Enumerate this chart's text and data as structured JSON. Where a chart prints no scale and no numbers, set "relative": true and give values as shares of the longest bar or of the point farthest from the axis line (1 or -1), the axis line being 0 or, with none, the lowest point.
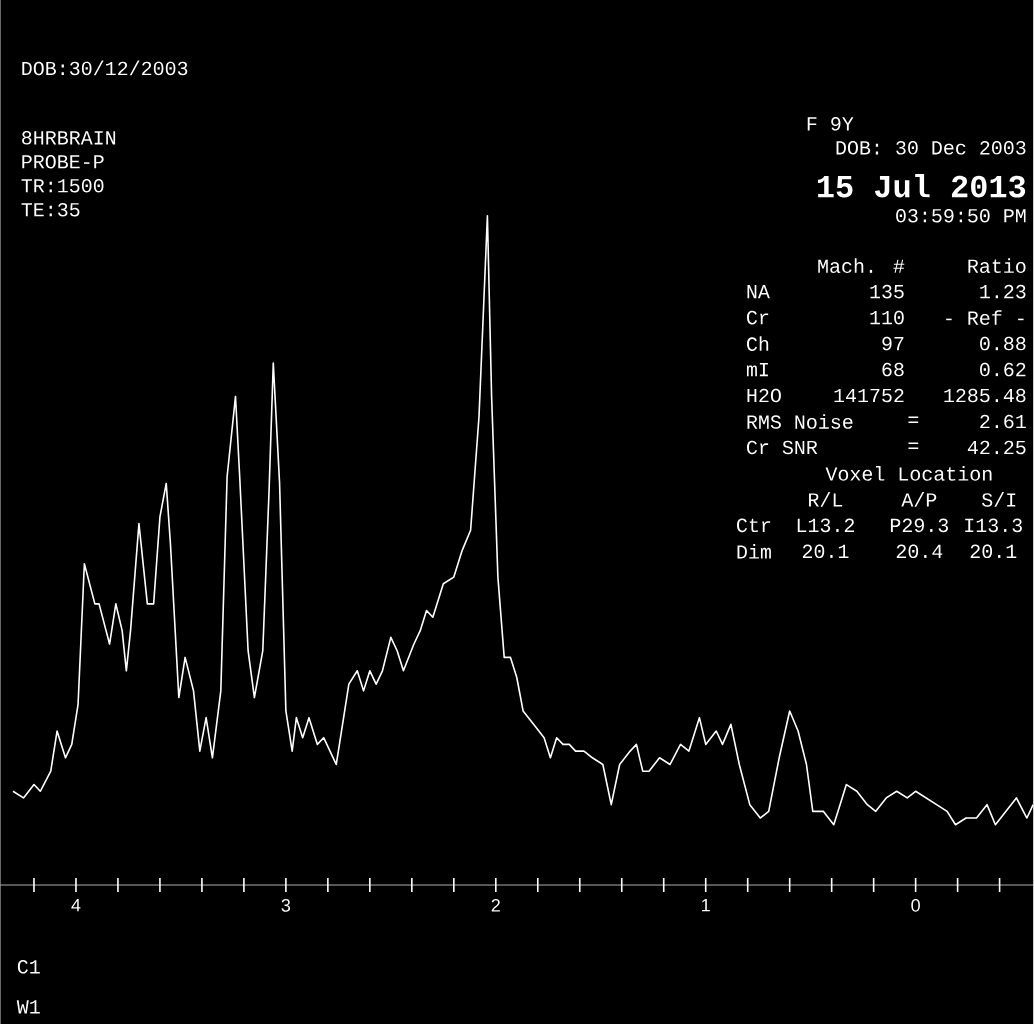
{
  "chart_data": {
    "type": "line",
    "relative": true,
    "tick_labels": "x",
    "xlim": [
      4.36,
      -0.56
    ],
    "xticks": [
      {
        "value": 4.2,
        "label": null
      },
      4,
      {
        "value": 3.8,
        "label": null
      },
      {
        "value": 3.6,
        "label": null
      },
      {
        "value": 3.4,
        "label": null
      },
      {
        "value": 3.2,
        "label": null
      },
      3,
      {
        "value": 2.8,
        "label": null
      },
      {
        "value": 2.6,
        "label": null
      },
      {
        "value": 2.4,
        "label": null
      },
      {
        "value": 2.2,
        "label": null
      },
      2,
      {
        "value": 1.8,
        "label": null
      },
      {
        "value": 1.6,
        "label": null
      },
      {
        "value": 1.4,
        "label": null
      },
      {
        "value": 1.2,
        "label": null
      },
      1,
      {
        "value": 0.8,
        "label": null
      },
      {
        "value": 0.6,
        "label": null
      },
      {
        "value": 0.4,
        "label": null
      },
      {
        "value": 0.2,
        "label": null
      },
      0,
      {
        "value": -0.2,
        "label": null
      },
      {
        "value": -0.4,
        "label": null
      }
    ],
    "series": [
      {
        "color": "#ffffff",
        "x": [
          4.3,
          4.25,
          4.2,
          4.17,
          4.12,
          4.09,
          4.05,
          4.02,
          3.99,
          3.96,
          3.91,
          3.89,
          3.84,
          3.81,
          3.78,
          3.76,
          3.74,
          3.7,
          3.69,
          3.66,
          3.63,
          3.6,
          3.57,
          3.55,
          3.51,
          3.48,
          3.44,
          3.41,
          3.38,
          3.35,
          3.31,
          3.28,
          3.24,
          3.22,
          3.18,
          3.15,
          3.11,
          3.08,
          3.06,
          3.03,
          3.0,
          2.97,
          2.95,
          2.92,
          2.89,
          2.85,
          2.82,
          2.79,
          2.76,
          2.73,
          2.7,
          2.66,
          2.63,
          2.6,
          2.57,
          2.54,
          2.5,
          2.47,
          2.44,
          2.39,
          2.36,
          2.33,
          2.3,
          2.25,
          2.2,
          2.16,
          2.12,
          2.08,
          2.04,
          2.02,
          1.99,
          1.96,
          1.93,
          1.9,
          1.87,
          1.82,
          1.77,
          1.74,
          1.71,
          1.68,
          1.65,
          1.62,
          1.58,
          1.54,
          1.49,
          1.45,
          1.41,
          1.36,
          1.33,
          1.3,
          1.27,
          1.22,
          1.17,
          1.12,
          1.08,
          1.03,
          1.0,
          0.95,
          0.92,
          0.88,
          0.84,
          0.79,
          0.74,
          0.7,
          0.65,
          0.6,
          0.56,
          0.52,
          0.49,
          0.44,
          0.39,
          0.36,
          0.33,
          0.28,
          0.23,
          0.19,
          0.14,
          0.09,
          0.04,
          0.0,
          -0.05,
          -0.1,
          -0.15,
          -0.19,
          -0.24,
          -0.29,
          -0.34,
          -0.38,
          -0.43,
          -0.48,
          -0.53,
          -0.56
        ],
        "values": [
          0.14,
          0.13,
          0.15,
          0.14,
          0.17,
          0.23,
          0.19,
          0.21,
          0.27,
          0.48,
          0.42,
          0.42,
          0.36,
          0.42,
          0.38,
          0.32,
          0.38,
          0.54,
          0.51,
          0.42,
          0.42,
          0.55,
          0.6,
          0.51,
          0.28,
          0.34,
          0.29,
          0.2,
          0.25,
          0.19,
          0.29,
          0.61,
          0.73,
          0.61,
          0.35,
          0.28,
          0.35,
          0.59,
          0.78,
          0.6,
          0.26,
          0.2,
          0.25,
          0.22,
          0.25,
          0.21,
          0.22,
          0.2,
          0.18,
          0.24,
          0.3,
          0.32,
          0.29,
          0.32,
          0.3,
          0.32,
          0.37,
          0.35,
          0.32,
          0.36,
          0.38,
          0.41,
          0.4,
          0.45,
          0.46,
          0.5,
          0.53,
          0.7,
          1.0,
          0.73,
          0.46,
          0.34,
          0.34,
          0.31,
          0.26,
          0.24,
          0.22,
          0.19,
          0.22,
          0.21,
          0.21,
          0.2,
          0.2,
          0.19,
          0.18,
          0.12,
          0.18,
          0.2,
          0.21,
          0.17,
          0.17,
          0.19,
          0.18,
          0.21,
          0.2,
          0.25,
          0.21,
          0.23,
          0.21,
          0.24,
          0.18,
          0.12,
          0.1,
          0.11,
          0.19,
          0.26,
          0.23,
          0.18,
          0.11,
          0.11,
          0.09,
          0.12,
          0.15,
          0.14,
          0.12,
          0.11,
          0.13,
          0.14,
          0.13,
          0.14,
          0.13,
          0.12,
          0.11,
          0.09,
          0.1,
          0.1,
          0.12,
          0.09,
          0.11,
          0.13,
          0.1,
          0.12
        ]
      }
    ],
    "annotations": [
      "DOB:30/12/2003",
      "8HRBRAIN",
      "PROBE-P",
      "TR:1500",
      "TE:35",
      "F 9Y",
      "DOB: 30 Dec 2003",
      "15 Jul 2013",
      "03:59:50 PM",
      "Mach. #",
      "Ratio",
      "NA",
      "135",
      "1.23",
      "Cr",
      "110",
      "- Ref -",
      "Ch",
      "97",
      "0.88",
      "mI",
      "68",
      "0.62",
      "H2O",
      "141752",
      "1285.48",
      "RMS Noise",
      "=",
      "2.61",
      "Cr SNR",
      "=",
      "42.25",
      "Voxel Location",
      "R/L",
      "A/P",
      "S/I",
      "Ctr",
      "L13.2",
      "P29.3",
      "I13.3",
      "Dim",
      "20.1",
      "20.4",
      "20.1",
      "C1",
      "W1"
    ]
  }
}
